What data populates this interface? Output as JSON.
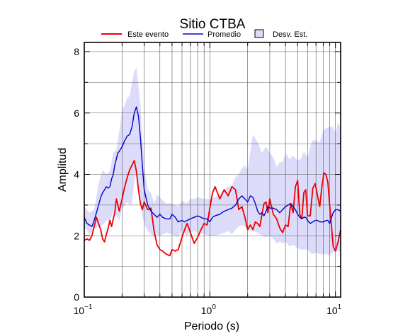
{
  "chart_data": {
    "type": "line",
    "title": "Sitio CTBA",
    "xlabel": "Periodo (s)",
    "ylabel": "Amplitud",
    "xscale": "log",
    "xlim": [
      0.1,
      11
    ],
    "ylim": [
      0,
      8.3
    ],
    "x_ticks": [
      {
        "label": "10",
        "sup": "−1"
      },
      {
        "label": "10",
        "sup": "0"
      },
      {
        "label": "10",
        "sup": "1"
      }
    ],
    "y_ticks": [
      "0",
      "2",
      "4",
      "6",
      "8"
    ],
    "grid": true,
    "legend": {
      "placement": "top",
      "entries": [
        "Este evento",
        "Promedio",
        "Desv. Est."
      ]
    },
    "colors": {
      "este_evento": "#ee0000",
      "promedio": "#0000cc",
      "desv_est": "#dcdcfa"
    },
    "series": [
      {
        "name": "Este evento",
        "x": [
          0.1,
          0.105,
          0.11,
          0.115,
          0.12,
          0.125,
          0.13,
          0.135,
          0.14,
          0.145,
          0.15,
          0.155,
          0.16,
          0.165,
          0.17,
          0.175,
          0.18,
          0.185,
          0.19,
          0.2,
          0.21,
          0.22,
          0.23,
          0.24,
          0.25,
          0.26,
          0.27,
          0.28,
          0.29,
          0.3,
          0.32,
          0.34,
          0.36,
          0.38,
          0.4,
          0.42,
          0.45,
          0.48,
          0.5,
          0.53,
          0.56,
          0.6,
          0.63,
          0.66,
          0.7,
          0.75,
          0.8,
          0.85,
          0.9,
          0.95,
          1.0,
          1.05,
          1.1,
          1.2,
          1.3,
          1.4,
          1.5,
          1.6,
          1.7,
          1.8,
          1.9,
          2.0,
          2.1,
          2.2,
          2.3,
          2.4,
          2.5,
          2.6,
          2.7,
          2.8,
          2.9,
          3.0,
          3.2,
          3.4,
          3.6,
          3.8,
          4.0,
          4.2,
          4.4,
          4.6,
          4.8,
          5.0,
          5.2,
          5.4,
          5.6,
          5.8,
          6.0,
          6.3,
          6.6,
          6.9,
          7.2,
          7.5,
          7.8,
          8.1,
          8.4,
          8.7,
          9.0,
          9.3,
          9.6,
          10.0,
          10.5,
          11.0
        ],
        "values": [
          1.85,
          1.9,
          1.85,
          2.0,
          2.3,
          2.6,
          2.4,
          2.2,
          1.9,
          1.8,
          2.05,
          2.25,
          2.5,
          2.3,
          2.55,
          2.75,
          3.2,
          3.0,
          2.8,
          3.2,
          3.6,
          3.9,
          4.15,
          4.3,
          4.45,
          4.1,
          3.5,
          3.05,
          2.85,
          3.1,
          2.85,
          2.9,
          2.15,
          1.7,
          1.55,
          1.5,
          1.4,
          1.35,
          1.55,
          1.5,
          1.55,
          1.95,
          2.2,
          2.4,
          2.1,
          1.75,
          1.95,
          2.2,
          2.4,
          2.35,
          2.9,
          3.4,
          3.6,
          3.2,
          3.5,
          3.3,
          3.6,
          3.5,
          2.85,
          2.95,
          2.6,
          2.2,
          2.35,
          2.2,
          2.45,
          2.4,
          2.3,
          2.7,
          3.05,
          3.1,
          2.75,
          3.2,
          2.7,
          2.55,
          2.25,
          2.1,
          2.35,
          2.3,
          3.05,
          2.75,
          3.6,
          3.8,
          2.7,
          2.55,
          3.4,
          3.5,
          2.65,
          2.65,
          3.55,
          3.7,
          3.3,
          2.95,
          3.6,
          4.05,
          4.0,
          3.75,
          3.0,
          2.3,
          1.65,
          1.5,
          1.8,
          2.2
        ]
      },
      {
        "name": "Promedio",
        "x": [
          0.1,
          0.105,
          0.11,
          0.115,
          0.12,
          0.125,
          0.13,
          0.135,
          0.14,
          0.145,
          0.15,
          0.155,
          0.16,
          0.165,
          0.17,
          0.175,
          0.18,
          0.185,
          0.19,
          0.2,
          0.21,
          0.22,
          0.23,
          0.24,
          0.25,
          0.26,
          0.27,
          0.28,
          0.29,
          0.3,
          0.32,
          0.34,
          0.36,
          0.38,
          0.4,
          0.42,
          0.45,
          0.48,
          0.5,
          0.53,
          0.56,
          0.6,
          0.63,
          0.66,
          0.7,
          0.75,
          0.8,
          0.85,
          0.9,
          0.95,
          1.0,
          1.05,
          1.1,
          1.2,
          1.3,
          1.4,
          1.5,
          1.6,
          1.7,
          1.8,
          1.9,
          2.0,
          2.1,
          2.2,
          2.3,
          2.4,
          2.5,
          2.6,
          2.7,
          2.8,
          2.9,
          3.0,
          3.2,
          3.4,
          3.6,
          3.8,
          4.0,
          4.2,
          4.4,
          4.6,
          4.8,
          5.0,
          5.2,
          5.4,
          5.6,
          5.8,
          6.0,
          6.3,
          6.6,
          6.9,
          7.2,
          7.5,
          7.8,
          8.1,
          8.4,
          8.7,
          9.0,
          9.3,
          9.6,
          10.0,
          10.5,
          11.0
        ],
        "values": [
          2.6,
          2.4,
          2.35,
          2.3,
          2.5,
          2.75,
          3.0,
          3.25,
          3.4,
          3.5,
          3.6,
          3.55,
          3.6,
          3.85,
          4.0,
          4.3,
          4.5,
          4.7,
          4.75,
          4.9,
          5.1,
          5.25,
          5.3,
          5.55,
          6.0,
          6.2,
          5.9,
          5.2,
          4.3,
          3.5,
          3.0,
          2.8,
          2.7,
          2.6,
          2.7,
          2.6,
          2.55,
          2.55,
          2.7,
          2.6,
          2.45,
          2.5,
          2.45,
          2.5,
          2.55,
          2.6,
          2.65,
          2.6,
          2.55,
          2.55,
          2.45,
          2.6,
          2.65,
          2.7,
          2.8,
          2.85,
          2.9,
          3.0,
          3.2,
          3.3,
          3.2,
          3.1,
          3.3,
          3.25,
          3.05,
          2.8,
          2.7,
          2.75,
          2.65,
          2.8,
          2.95,
          2.9,
          2.9,
          2.85,
          2.75,
          2.85,
          2.95,
          3.0,
          3.05,
          2.95,
          2.85,
          2.7,
          2.6,
          2.55,
          2.6,
          2.6,
          2.5,
          2.4,
          2.45,
          2.5,
          2.5,
          2.45,
          2.45,
          2.45,
          2.5,
          2.5,
          2.4,
          2.6,
          2.75,
          2.85,
          2.85,
          2.8
        ]
      }
    ],
    "band": {
      "name": "Desv. Est.",
      "x": [
        0.1,
        0.11,
        0.12,
        0.13,
        0.14,
        0.15,
        0.16,
        0.17,
        0.18,
        0.19,
        0.2,
        0.21,
        0.22,
        0.23,
        0.24,
        0.25,
        0.26,
        0.27,
        0.28,
        0.29,
        0.3,
        0.32,
        0.34,
        0.36,
        0.38,
        0.4,
        0.45,
        0.5,
        0.56,
        0.6,
        0.65,
        0.7,
        0.75,
        0.8,
        0.9,
        1.0,
        1.1,
        1.2,
        1.3,
        1.4,
        1.5,
        1.6,
        1.7,
        1.8,
        1.9,
        2.0,
        2.2,
        2.4,
        2.6,
        2.8,
        3.0,
        3.2,
        3.4,
        3.6,
        3.8,
        4.0,
        4.3,
        4.6,
        5.0,
        5.3,
        5.6,
        6.0,
        6.5,
        7.0,
        7.5,
        8.0,
        8.5,
        9.0,
        9.5,
        10.0,
        10.5,
        11.0
      ],
      "lower": [
        2.3,
        2.05,
        2.2,
        2.3,
        2.35,
        2.5,
        2.5,
        2.75,
        2.65,
        2.5,
        2.85,
        3.0,
        3.1,
        3.0,
        3.05,
        3.8,
        4.1,
        3.7,
        3.1,
        2.65,
        2.4,
        2.15,
        2.05,
        1.95,
        2.05,
        2.0,
        2.1,
        2.05,
        1.95,
        2.2,
        2.0,
        2.1,
        2.15,
        2.1,
        2.05,
        2.0,
        2.0,
        2.05,
        2.1,
        2.15,
        2.05,
        2.2,
        2.3,
        2.35,
        2.3,
        2.2,
        2.15,
        2.1,
        2.0,
        1.95,
        2.0,
        1.9,
        1.75,
        1.8,
        1.75,
        1.8,
        1.65,
        1.7,
        1.6,
        1.55,
        1.55,
        1.55,
        1.4,
        1.45,
        1.4,
        1.4,
        1.4,
        1.35,
        1.45,
        1.5,
        1.5,
        1.45
      ],
      "upper": [
        2.95,
        2.75,
        2.85,
        3.7,
        4.15,
        4.0,
        4.1,
        4.7,
        4.8,
        5.4,
        6.1,
        6.25,
        6.5,
        6.55,
        7.0,
        7.35,
        7.5,
        6.9,
        6.25,
        5.2,
        4.3,
        3.5,
        3.4,
        3.05,
        3.35,
        3.25,
        3.05,
        3.05,
        2.95,
        3.15,
        3.05,
        3.2,
        3.2,
        3.25,
        3.2,
        3.2,
        3.25,
        3.35,
        3.5,
        3.6,
        3.65,
        3.9,
        4.0,
        4.2,
        4.3,
        4.15,
        5.3,
        5.05,
        4.7,
        4.9,
        4.7,
        4.55,
        4.25,
        4.4,
        4.4,
        4.7,
        4.5,
        4.6,
        4.45,
        4.5,
        4.75,
        4.55,
        5.1,
        5.1,
        5.05,
        5.45,
        5.5,
        5.55,
        5.55,
        5.35,
        5.7,
        5.5
      ]
    }
  }
}
